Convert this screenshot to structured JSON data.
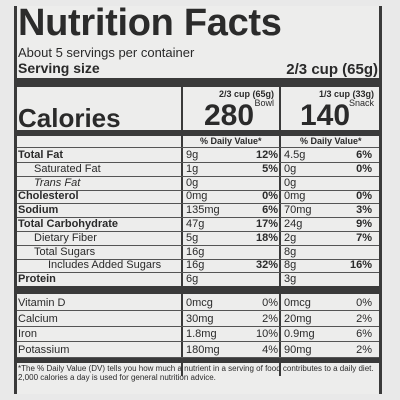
{
  "title": "Nutrition Facts",
  "servings_per_container": "About 5 servings per container",
  "serving_size_label": "Serving size",
  "serving_size_value": "2/3 cup (65g)",
  "columns": [
    {
      "size": "2/3 cup (65g)",
      "name": "Bowl",
      "calories": "280"
    },
    {
      "size": "1/3 cup (33g)",
      "name": "Snack",
      "calories": "140"
    }
  ],
  "calories_label": "Calories",
  "dv_header": "% Daily Value*",
  "nutrients": [
    {
      "label": "Total Fat",
      "bold": true,
      "indent": 0,
      "a1": "9g",
      "p1": "12%",
      "a2": "4.5g",
      "p2": "6%"
    },
    {
      "label": "Saturated Fat",
      "bold": false,
      "indent": 1,
      "a1": "1g",
      "p1": "5%",
      "a2": "0g",
      "p2": "0%"
    },
    {
      "label": "Trans Fat",
      "bold": false,
      "indent": 1,
      "italic": true,
      "a1": "0g",
      "p1": "",
      "a2": "0g",
      "p2": ""
    },
    {
      "label": "Cholesterol",
      "bold": true,
      "indent": 0,
      "a1": "0mg",
      "p1": "0%",
      "a2": "0mg",
      "p2": "0%"
    },
    {
      "label": "Sodium",
      "bold": true,
      "indent": 0,
      "a1": "135mg",
      "p1": "6%",
      "a2": "70mg",
      "p2": "3%"
    },
    {
      "label": "Total Carbohydrate",
      "bold": true,
      "indent": 0,
      "a1": "47g",
      "p1": "17%",
      "a2": "24g",
      "p2": "9%"
    },
    {
      "label": "Dietary Fiber",
      "bold": false,
      "indent": 1,
      "a1": "5g",
      "p1": "18%",
      "a2": "2g",
      "p2": "7%"
    },
    {
      "label": "Total Sugars",
      "bold": false,
      "indent": 1,
      "a1": "16g",
      "p1": "",
      "a2": "8g",
      "p2": ""
    },
    {
      "label": "Includes Added Sugars",
      "bold": false,
      "indent": 2,
      "a1": "16g",
      "p1": "32%",
      "a2": "8g",
      "p2": "16%"
    },
    {
      "label": "Protein",
      "bold": true,
      "indent": 0,
      "a1": "6g",
      "p1": "",
      "a2": "3g",
      "p2": ""
    }
  ],
  "vitamins": [
    {
      "label": "Vitamin D",
      "a1": "0mcg",
      "p1": "0%",
      "a2": "0mcg",
      "p2": "0%"
    },
    {
      "label": "Calcium",
      "a1": "30mg",
      "p1": "2%",
      "a2": "20mg",
      "p2": "2%"
    },
    {
      "label": "Iron",
      "a1": "1.8mg",
      "p1": "10%",
      "a2": "0.9mg",
      "p2": "6%"
    },
    {
      "label": "Potassium",
      "a1": "180mg",
      "p1": "4%",
      "a2": "90mg",
      "p2": "2%"
    }
  ],
  "footnote": "*The % Daily Value (DV) tells you how much a nutrient in a serving of food contributes to a daily diet. 2,000 calories a day is used for general nutrition advice."
}
